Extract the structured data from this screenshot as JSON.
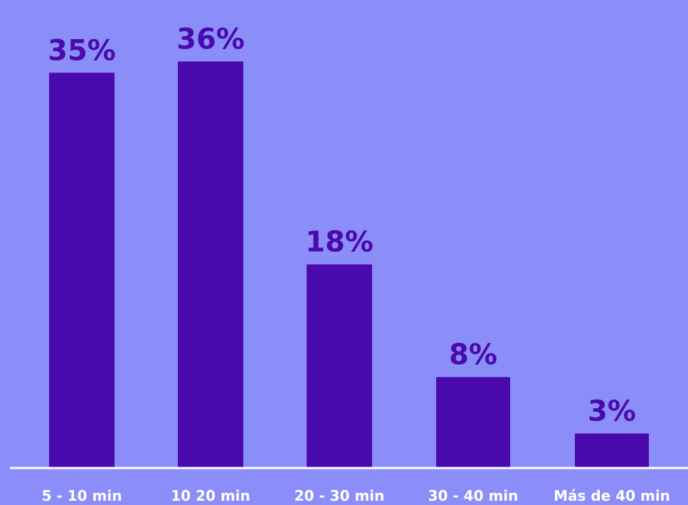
{
  "chart_data": {
    "type": "bar",
    "categories": [
      "5 - 10 min",
      "10 20 min",
      "20 - 30 min",
      "30 - 40 min",
      "Más de 40 min"
    ],
    "values": [
      35,
      36,
      18,
      8,
      3
    ],
    "value_labels": [
      "35%",
      "36%",
      "18%",
      "8%",
      "3%"
    ],
    "title": "",
    "xlabel": "",
    "ylabel": "",
    "grid": false,
    "legend": "none"
  },
  "colors": {
    "background": "#8b8ef8",
    "bar": "#4a0aad",
    "value_label": "#4a0aad",
    "axis_line": "#ffffff",
    "category_label": "#ffffff"
  }
}
